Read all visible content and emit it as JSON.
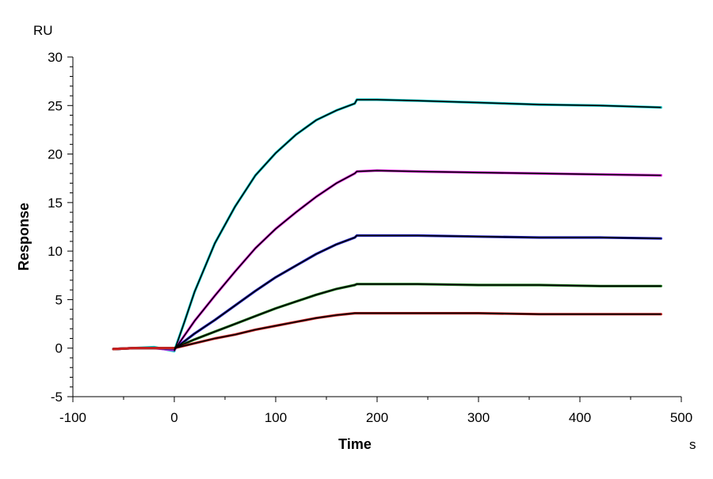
{
  "chart_data": {
    "type": "line",
    "title": "",
    "xlabel": "Time",
    "ylabel": "Response",
    "x_unit": "s",
    "y_unit": "RU",
    "xlim": [
      -100,
      500
    ],
    "ylim": [
      -5,
      30
    ],
    "x_ticks": [
      -100,
      0,
      100,
      200,
      300,
      400,
      500
    ],
    "y_ticks": [
      -5,
      0,
      5,
      10,
      15,
      20,
      25,
      30
    ],
    "x_tick_labels": [
      "-100",
      "0",
      "100",
      "200",
      "300",
      "400",
      "500"
    ],
    "y_tick_labels": [
      "-5",
      "0",
      "5",
      "10",
      "15",
      "20",
      "25",
      "30"
    ],
    "grid": false,
    "legend": "none",
    "series": [
      {
        "color": "#00c8c8",
        "x": [
          -60,
          -40,
          -20,
          0,
          10,
          20,
          40,
          60,
          80,
          100,
          120,
          140,
          160,
          178,
          180,
          200,
          240,
          300,
          360,
          420,
          480
        ],
        "y": [
          -0.1,
          0.0,
          0.1,
          -0.3,
          2.7,
          5.8,
          10.8,
          14.6,
          17.8,
          20.1,
          22.0,
          23.5,
          24.5,
          25.2,
          25.6,
          25.6,
          25.5,
          25.3,
          25.1,
          25.0,
          24.8
        ]
      },
      {
        "color": "#e020e0",
        "x": [
          -60,
          -40,
          -20,
          0,
          20,
          40,
          60,
          80,
          100,
          120,
          140,
          160,
          178,
          180,
          200,
          240,
          300,
          360,
          420,
          480
        ],
        "y": [
          -0.1,
          0.0,
          0.0,
          -0.2,
          2.8,
          5.4,
          7.9,
          10.3,
          12.3,
          14.0,
          15.6,
          17.0,
          18.0,
          18.2,
          18.3,
          18.2,
          18.1,
          18.0,
          17.9,
          17.8
        ]
      },
      {
        "color": "#1e1ec8",
        "x": [
          -60,
          -40,
          -20,
          0,
          20,
          40,
          60,
          80,
          100,
          120,
          140,
          160,
          178,
          180,
          200,
          240,
          300,
          360,
          420,
          480
        ],
        "y": [
          -0.1,
          0.0,
          0.0,
          -0.1,
          1.5,
          2.9,
          4.4,
          5.9,
          7.3,
          8.5,
          9.7,
          10.7,
          11.4,
          11.6,
          11.6,
          11.6,
          11.5,
          11.4,
          11.4,
          11.3
        ]
      },
      {
        "color": "#1a7a1a",
        "x": [
          -60,
          -40,
          -20,
          0,
          20,
          40,
          60,
          80,
          100,
          120,
          140,
          160,
          178,
          180,
          200,
          240,
          300,
          360,
          420,
          480
        ],
        "y": [
          -0.1,
          0.0,
          0.0,
          0.0,
          0.9,
          1.7,
          2.5,
          3.3,
          4.1,
          4.8,
          5.5,
          6.1,
          6.5,
          6.6,
          6.6,
          6.6,
          6.5,
          6.5,
          6.4,
          6.4
        ]
      },
      {
        "color": "#c81e1e",
        "x": [
          -60,
          -40,
          -20,
          0,
          20,
          40,
          60,
          80,
          100,
          120,
          140,
          160,
          178,
          180,
          200,
          240,
          300,
          360,
          420,
          480
        ],
        "y": [
          -0.1,
          0.0,
          0.0,
          0.0,
          0.5,
          1.0,
          1.4,
          1.9,
          2.3,
          2.7,
          3.1,
          3.4,
          3.6,
          3.6,
          3.6,
          3.6,
          3.6,
          3.5,
          3.5,
          3.5
        ]
      }
    ],
    "fit_color": "#000000"
  }
}
